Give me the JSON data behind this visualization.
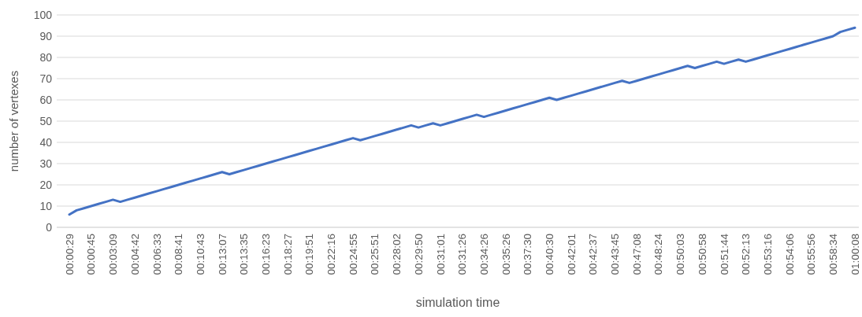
{
  "chart_data": {
    "type": "line",
    "xlabel": "simulation time",
    "ylabel": "number of vertexes",
    "categories": [
      "00:00:29",
      null,
      null,
      "00:00:45",
      null,
      null,
      "00:03:09",
      null,
      null,
      "00:04:42",
      null,
      null,
      "00:06:33",
      null,
      null,
      "00:08:41",
      null,
      null,
      "00:10:43",
      null,
      null,
      "00:13:07",
      null,
      null,
      "00:13:35",
      null,
      null,
      "00:16:23",
      null,
      null,
      "00:18:27",
      null,
      null,
      "00:19:51",
      null,
      null,
      "00:22:16",
      null,
      null,
      "00:24:55",
      null,
      null,
      "00:25:51",
      null,
      null,
      "00:28:02",
      null,
      null,
      "00:29:50",
      null,
      null,
      "00:31:01",
      null,
      null,
      "00:31:26",
      null,
      null,
      "00:34:26",
      null,
      null,
      "00:35:26",
      null,
      null,
      "00:37:30",
      null,
      null,
      "00:40:30",
      null,
      null,
      "00:42:01",
      null,
      null,
      "00:42:37",
      null,
      null,
      "00:43:45",
      null,
      null,
      "00:47:08",
      null,
      null,
      "00:48:24",
      null,
      null,
      "00:50:03",
      null,
      null,
      "00:50:58",
      null,
      null,
      "00:51:44",
      null,
      null,
      "00:52:13",
      null,
      null,
      "00:53:16",
      null,
      null,
      "00:54:06",
      null,
      null,
      "00:55:56",
      null,
      null,
      "00:58:34",
      null,
      null,
      "01:00:08"
    ],
    "series": [
      {
        "color": "#4472c4",
        "values": [
          6,
          8,
          9,
          10,
          11,
          12,
          13,
          12,
          13,
          14,
          15,
          16,
          17,
          18,
          19,
          20,
          21,
          22,
          23,
          24,
          25,
          26,
          25,
          26,
          27,
          28,
          29,
          30,
          31,
          32,
          33,
          34,
          35,
          36,
          37,
          38,
          39,
          40,
          41,
          42,
          41,
          42,
          43,
          44,
          45,
          46,
          47,
          48,
          47,
          48,
          49,
          48,
          49,
          50,
          51,
          52,
          53,
          52,
          53,
          54,
          55,
          56,
          57,
          58,
          59,
          60,
          61,
          60,
          61,
          62,
          63,
          64,
          65,
          66,
          67,
          68,
          69,
          68,
          69,
          70,
          71,
          72,
          73,
          74,
          75,
          76,
          75,
          76,
          77,
          78,
          77,
          78,
          79,
          78,
          79,
          80,
          81,
          82,
          83,
          84,
          85,
          86,
          87,
          88,
          89,
          90,
          92,
          93,
          94
        ]
      }
    ],
    "ylim": [
      0,
      100
    ],
    "yticks": [
      0,
      10,
      20,
      30,
      40,
      50,
      60,
      70,
      80,
      90,
      100
    ],
    "grid": "y",
    "line_style": "solid"
  }
}
